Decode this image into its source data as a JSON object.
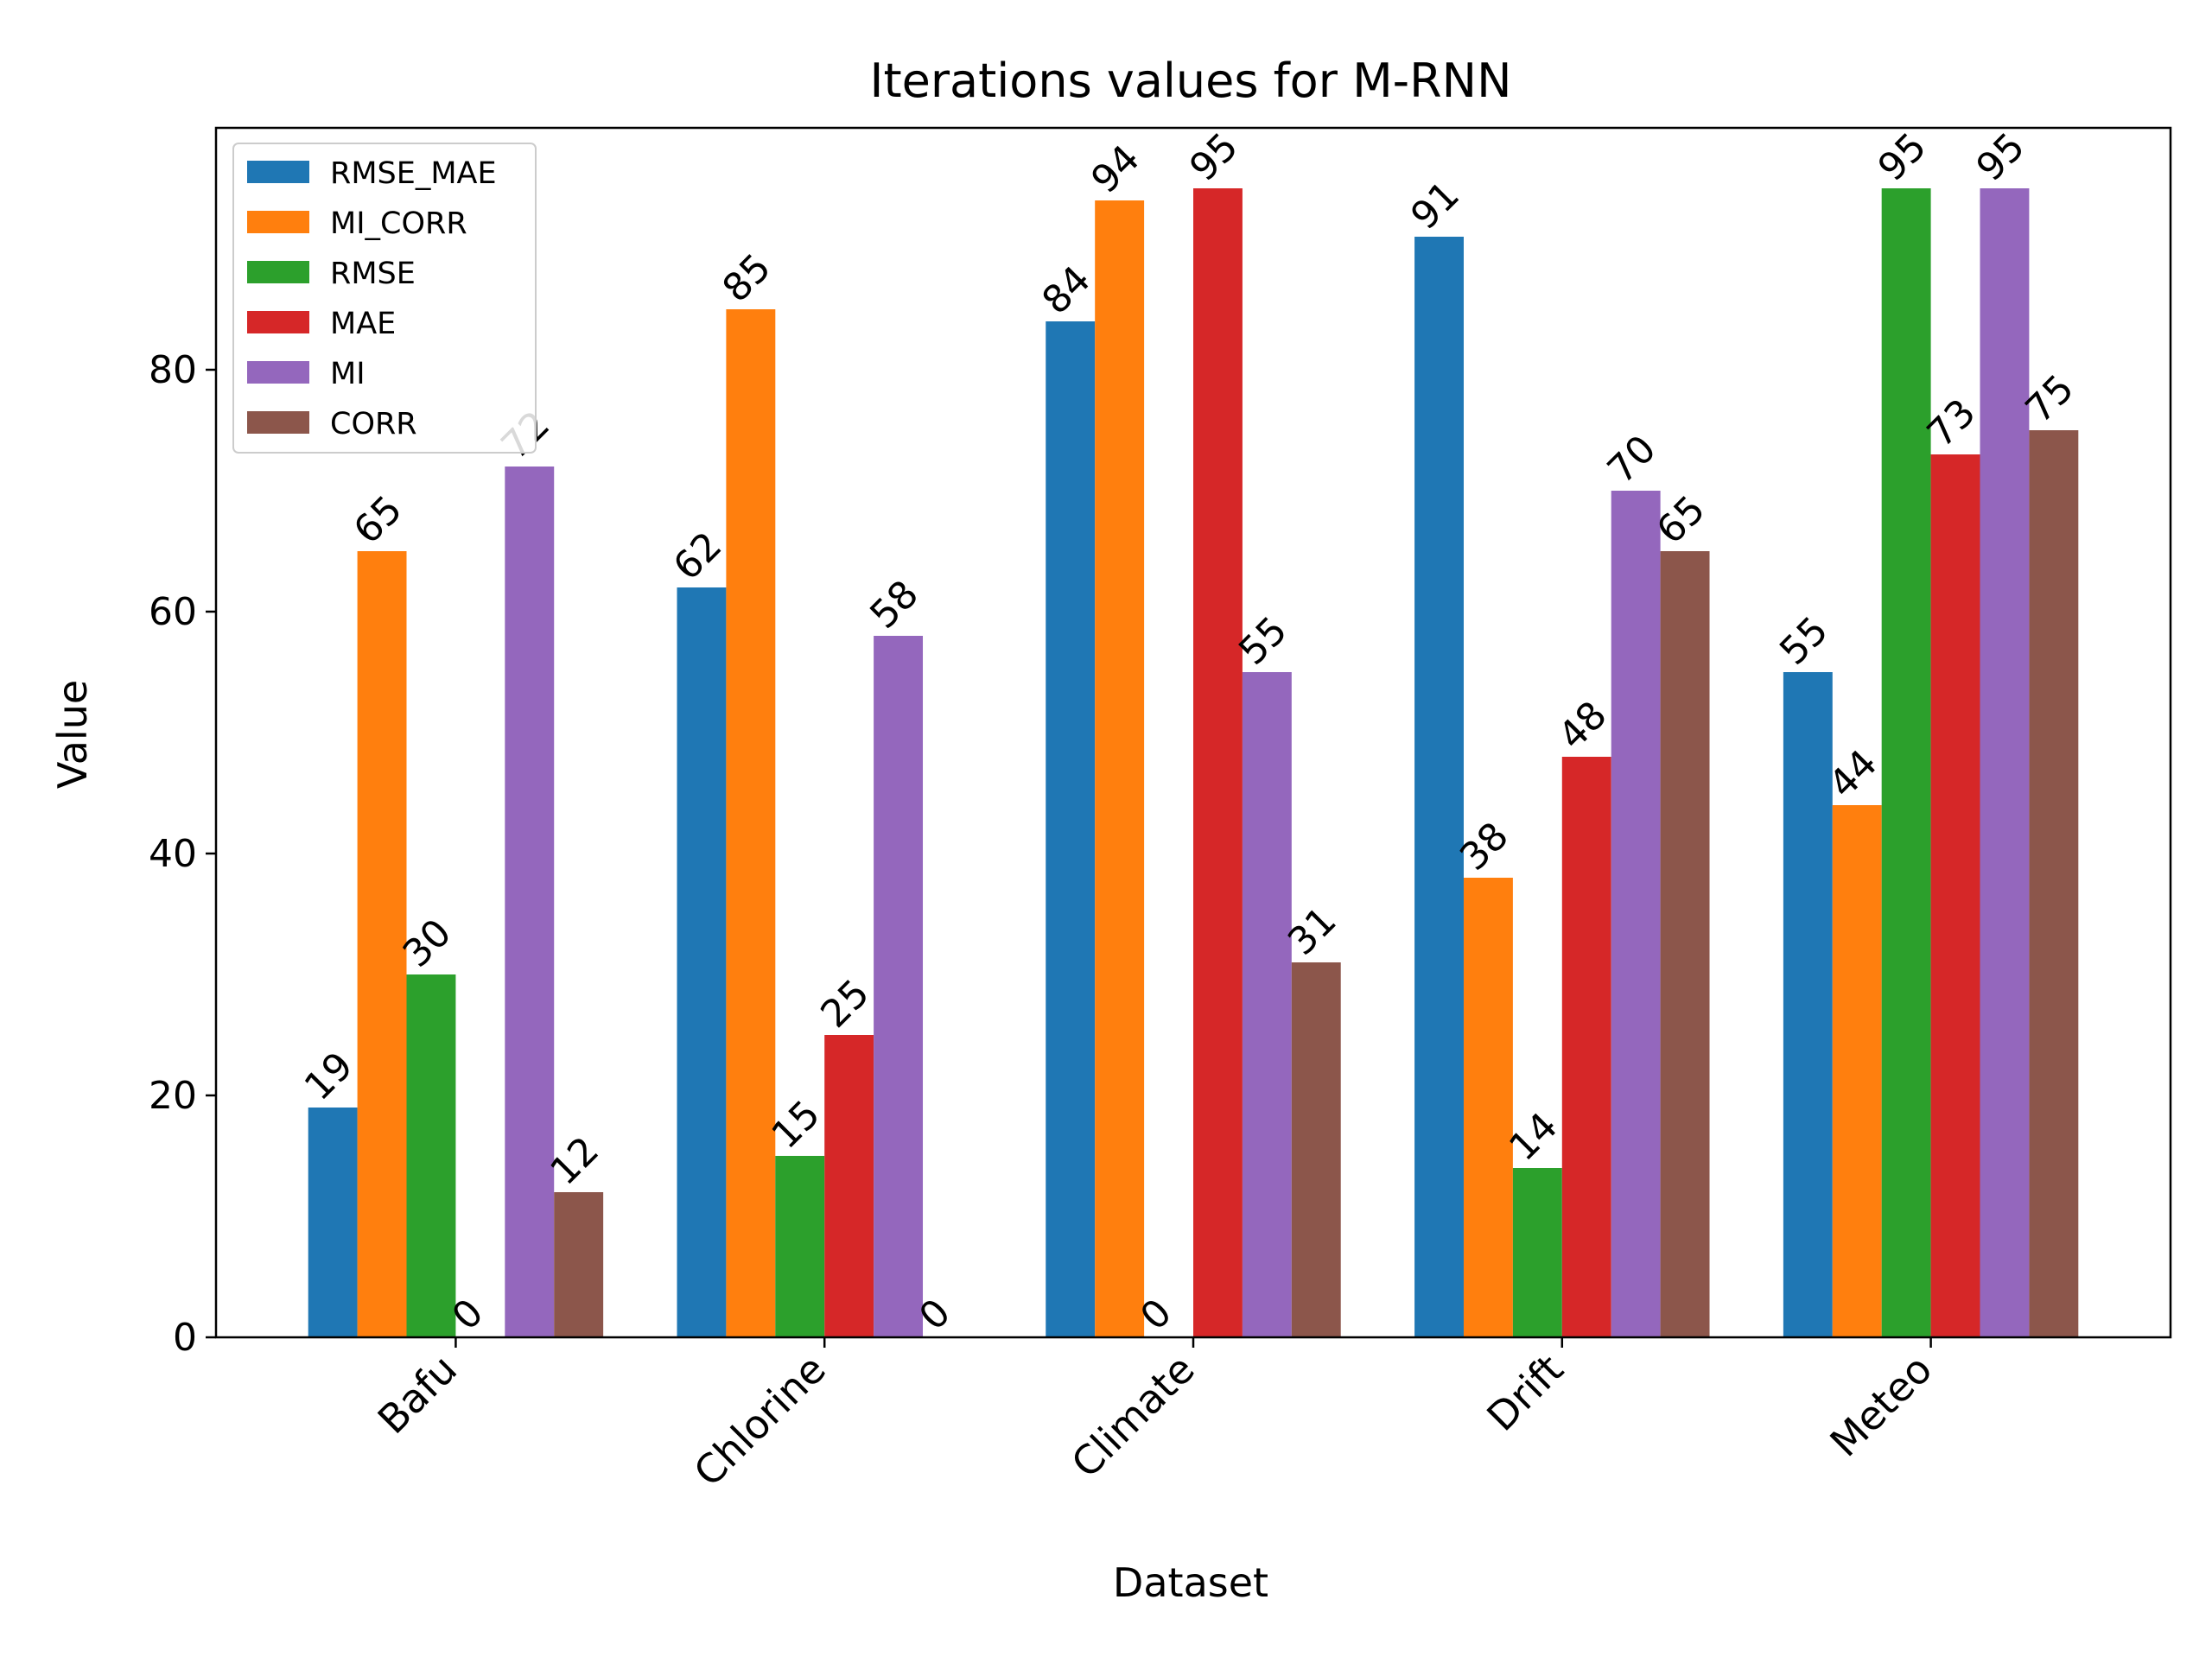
{
  "chart_data": {
    "type": "bar",
    "title": "Iterations values for M-RNN",
    "xlabel": "Dataset",
    "ylabel": "Value",
    "categories": [
      "Bafu",
      "Chlorine",
      "Climate",
      "Drift",
      "Meteo"
    ],
    "ylim": [
      0,
      100
    ],
    "yticks": [
      0,
      20,
      40,
      60,
      80
    ],
    "grid": false,
    "legend_position": "top-left",
    "series": [
      {
        "name": "RMSE_MAE",
        "color": "#1f77b4",
        "values": [
          19,
          62,
          84,
          91,
          55
        ]
      },
      {
        "name": "MI_CORR",
        "color": "#ff7f0e",
        "values": [
          65,
          85,
          94,
          38,
          44
        ]
      },
      {
        "name": "RMSE",
        "color": "#2ca02c",
        "values": [
          30,
          15,
          0,
          14,
          95
        ]
      },
      {
        "name": "MAE",
        "color": "#d62728",
        "values": [
          0,
          25,
          95,
          48,
          73
        ]
      },
      {
        "name": "MI",
        "color": "#9467bd",
        "values": [
          72,
          58,
          55,
          70,
          95
        ]
      },
      {
        "name": "CORR",
        "color": "#8c564b",
        "values": [
          12,
          0,
          31,
          65,
          75
        ]
      }
    ]
  }
}
